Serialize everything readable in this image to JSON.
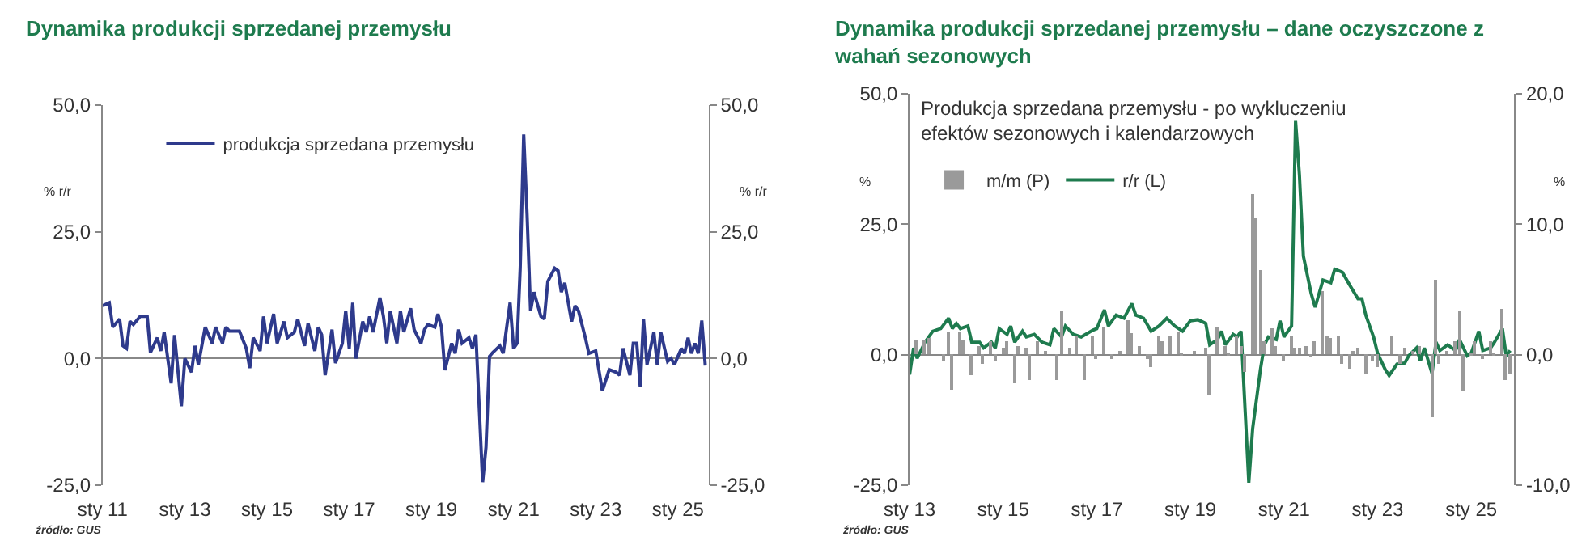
{
  "chart_data": [
    {
      "type": "line",
      "title": "Dynamika produkcji sprzedanej przemysłu",
      "ylabel": "% r/r",
      "y2label": "% r/r",
      "legend": "top",
      "annotations": [
        "źródło: GUS"
      ],
      "xlim": [
        "2011-01",
        "2025-10"
      ],
      "xticks": [
        {
          "value": "2011-01",
          "label": "sty 11"
        },
        {
          "value": "2013-01",
          "label": "sty 13"
        },
        {
          "value": "2015-01",
          "label": "sty 15"
        },
        {
          "value": "2017-01",
          "label": "sty 17"
        },
        {
          "value": "2019-01",
          "label": "sty 19"
        },
        {
          "value": "2021-01",
          "label": "sty 21"
        },
        {
          "value": "2023-01",
          "label": "sty 23"
        },
        {
          "value": "2025-01",
          "label": "sty 25"
        }
      ],
      "ylim": [
        -25,
        50
      ],
      "yticks": [
        {
          "value": -25,
          "label": "-25,0"
        },
        {
          "value": 0,
          "label": "0,0"
        },
        {
          "value": 25,
          "label": "25,0"
        },
        {
          "value": 50,
          "label": "50,0"
        }
      ],
      "y2lim": [
        -25,
        50
      ],
      "y2ticks": [
        {
          "value": -25,
          "label": "-25,0"
        },
        {
          "value": 0,
          "label": "0,0"
        },
        {
          "value": 25,
          "label": "25,0"
        },
        {
          "value": 50,
          "label": "50,0"
        }
      ],
      "series": [
        {
          "name": "produkcja sprzedana przemysłu",
          "color": "#2e3a8c",
          "type": "line",
          "x": [
            "2011-01",
            "2011-03",
            "2011-04",
            "2011-06",
            "2011-07",
            "2011-08",
            "2011-09",
            "2011-10",
            "2011-12",
            "2012-02",
            "2012-03",
            "2012-05",
            "2012-06",
            "2012-07",
            "2012-09",
            "2012-10",
            "2012-12",
            "2013-01",
            "2013-03",
            "2013-04",
            "2013-05",
            "2013-07",
            "2013-09",
            "2013-10",
            "2013-12",
            "2014-01",
            "2014-02",
            "2014-05",
            "2014-07",
            "2014-08",
            "2014-09",
            "2014-11",
            "2014-12",
            "2015-01",
            "2015-03",
            "2015-04",
            "2015-06",
            "2015-07",
            "2015-09",
            "2015-10",
            "2015-12",
            "2016-01",
            "2016-03",
            "2016-04",
            "2016-05",
            "2016-06",
            "2016-08",
            "2016-09",
            "2016-11",
            "2016-12",
            "2017-01",
            "2017-02",
            "2017-03",
            "2017-05",
            "2017-06",
            "2017-07",
            "2017-08",
            "2017-10",
            "2017-11",
            "2017-12",
            "2018-01",
            "2018-03",
            "2018-04",
            "2018-05",
            "2018-07",
            "2018-08",
            "2018-10",
            "2018-11",
            "2018-12",
            "2019-02",
            "2019-03",
            "2019-04",
            "2019-05",
            "2019-07",
            "2019-08",
            "2019-09",
            "2019-10",
            "2019-12",
            "2020-01",
            "2020-02",
            "2020-04",
            "2020-05",
            "2020-06",
            "2020-07",
            "2020-09",
            "2020-10",
            "2020-11",
            "2020-12",
            "2021-01",
            "2021-02",
            "2021-03",
            "2021-04",
            "2021-05",
            "2021-06",
            "2021-07",
            "2021-09",
            "2021-10",
            "2021-11",
            "2022-01",
            "2022-02",
            "2022-03",
            "2022-04",
            "2022-06",
            "2022-07",
            "2022-08",
            "2022-10",
            "2022-11",
            "2023-01",
            "2023-03",
            "2023-05",
            "2023-07",
            "2023-08",
            "2023-09",
            "2023-11",
            "2023-12",
            "2024-01",
            "2024-02",
            "2024-03",
            "2024-04",
            "2024-06",
            "2024-07",
            "2024-08",
            "2024-10",
            "2024-11",
            "2024-12",
            "2025-02",
            "2025-03",
            "2025-04",
            "2025-05",
            "2025-06",
            "2025-07",
            "2025-08",
            "2025-09"
          ],
          "values": [
            10.4,
            11,
            6.2,
            7.8,
            2.5,
            2,
            7.3,
            6.7,
            8.3,
            8.3,
            1.2,
            4.1,
            1.5,
            5.2,
            -4.9,
            4.6,
            -9.4,
            0,
            -2.7,
            2.5,
            -1.2,
            6.2,
            3,
            6.2,
            3,
            6.2,
            5.4,
            5.4,
            2,
            -1.9,
            4.1,
            1.5,
            8.3,
            3,
            8.8,
            3,
            7.3,
            4.1,
            5.2,
            7.8,
            2.5,
            6.9,
            1.5,
            6.2,
            4.7,
            -3.3,
            5.7,
            -0.9,
            3,
            9.4,
            2,
            11,
            0,
            7.3,
            5.2,
            8.3,
            5.2,
            12,
            8.3,
            3,
            9.4,
            3,
            9.4,
            5.2,
            9.9,
            5.7,
            3,
            5.7,
            6.7,
            6.2,
            8.8,
            6.2,
            -2.3,
            3,
            1,
            5.7,
            3,
            4.1,
            2,
            4.7,
            -24.4,
            -17.5,
            0.4,
            1.2,
            2.5,
            1,
            6.2,
            11,
            2,
            3,
            17.8,
            44.2,
            28.4,
            9.4,
            13.1,
            8.3,
            7.8,
            15.2,
            17.8,
            17.3,
            13.1,
            14.9,
            7.3,
            10.4,
            9.4,
            4.1,
            1,
            1.5,
            -6.4,
            -2.2,
            -2.7,
            -3.3,
            2,
            -3.3,
            3,
            3,
            -5.6,
            7.8,
            -1.2,
            5.2,
            -1.2,
            5.2,
            -0.6,
            0,
            -1.2,
            2,
            1,
            4.1,
            1,
            3,
            1,
            7.5,
            -1.4
          ]
        }
      ]
    },
    {
      "type": "line",
      "title": "Dynamika produkcji sprzedanej przemysłu – dane oczyszczone z wahań sezonowych",
      "subtitle": "Produkcja sprzedana przemysłu - po wykluczeniu efektów sezonowych i kalendarzowych",
      "ylabel": "%",
      "y2label": "%",
      "legend": "top left",
      "annotations": [
        "źródło: GUS"
      ],
      "xlim": [
        "2013-01",
        "2025-12"
      ],
      "xticks": [
        {
          "value": "2013-01",
          "label": "sty 13"
        },
        {
          "value": "2015-01",
          "label": "sty 15"
        },
        {
          "value": "2017-01",
          "label": "sty 17"
        },
        {
          "value": "2019-01",
          "label": "sty 19"
        },
        {
          "value": "2021-01",
          "label": "sty 21"
        },
        {
          "value": "2023-01",
          "label": "sty 23"
        },
        {
          "value": "2025-01",
          "label": "sty 25"
        }
      ],
      "ylim": [
        -25,
        50
      ],
      "yticks": [
        {
          "value": -25,
          "label": "-25,0"
        },
        {
          "value": 0,
          "label": "0,0"
        },
        {
          "value": 25,
          "label": "25,0"
        },
        {
          "value": 50,
          "label": "50,0"
        }
      ],
      "y2lim": [
        -10,
        20
      ],
      "y2ticks": [
        {
          "value": -10,
          "label": "-10,0"
        },
        {
          "value": 0,
          "label": "0,0"
        },
        {
          "value": 10,
          "label": "10,0"
        },
        {
          "value": 20,
          "label": "20,0"
        }
      ],
      "series": [
        {
          "name": "m/m (P)",
          "color": "#9a9a9a",
          "type": "bar",
          "axis": "y2",
          "x": [
            "2013-03",
            "2013-05",
            "2013-06",
            "2013-10",
            "2013-11",
            "2013-12",
            "2014-02",
            "2014-03",
            "2014-05",
            "2014-07",
            "2014-08",
            "2014-10",
            "2014-11",
            "2015-01",
            "2015-02",
            "2015-04",
            "2015-05",
            "2015-07",
            "2015-08",
            "2015-10",
            "2015-12",
            "2016-03",
            "2016-04",
            "2016-06",
            "2016-08",
            "2016-10",
            "2016-12",
            "2017-01",
            "2017-03",
            "2017-05",
            "2017-07",
            "2017-09",
            "2017-10",
            "2017-12",
            "2018-02",
            "2018-03",
            "2018-05",
            "2018-06",
            "2018-08",
            "2018-10",
            "2018-11",
            "2019-02",
            "2019-05",
            "2019-06",
            "2019-08",
            "2019-10",
            "2019-11",
            "2020-01",
            "2020-02",
            "2020-03",
            "2020-05",
            "2020-06",
            "2020-07",
            "2020-08",
            "2020-10",
            "2020-11",
            "2021-01",
            "2021-03",
            "2021-04",
            "2021-05",
            "2021-07",
            "2021-08",
            "2021-09",
            "2021-11",
            "2021-12",
            "2022-01",
            "2022-03",
            "2022-04",
            "2022-06",
            "2022-07",
            "2022-08",
            "2022-10",
            "2022-12",
            "2023-01",
            "2023-05",
            "2023-07",
            "2023-08",
            "2023-10",
            "2023-12",
            "2024-03",
            "2024-04",
            "2024-05",
            "2024-07",
            "2024-09",
            "2024-10",
            "2024-11",
            "2025-01",
            "2025-02",
            "2025-04",
            "2025-06",
            "2025-07",
            "2025-09",
            "2025-10",
            "2025-11"
          ],
          "values": [
            1.2,
            1.2,
            1.3,
            -0.4,
            1.8,
            -2.7,
            1.8,
            1.2,
            -1.6,
            0.7,
            -0.7,
            1,
            -0.5,
            0.5,
            1,
            -2.2,
            0.7,
            0.5,
            -1.9,
            1,
            0.3,
            -2,
            3.4,
            0.5,
            1.4,
            -1.9,
            1.4,
            -0.3,
            2.1,
            -0.3,
            0.3,
            2.6,
            1.6,
            0.7,
            -0.3,
            -0.9,
            1.4,
            1,
            1.4,
            1.8,
            0.1,
            0.3,
            0.5,
            -3,
            2.1,
            0.7,
            0.1,
            1.4,
            0.7,
            -1.3,
            12.3,
            10.4,
            6.5,
            1,
            2,
            0.7,
            -0.5,
            1.4,
            0.5,
            0.5,
            0.7,
            -0.1,
            1,
            4.9,
            1.4,
            1.3,
            1.4,
            -0.7,
            -1.1,
            0.3,
            0.5,
            -1.5,
            -0.5,
            -0.9,
            1.4,
            -0.7,
            0.5,
            0.3,
            0.7,
            -4.8,
            5.8,
            -0.7,
            0.3,
            1,
            3.4,
            -2.8,
            0.1,
            1,
            -0.3,
            1,
            0.1,
            3.5,
            -1.9,
            -1.5
          ]
        },
        {
          "name": "r/r (L)",
          "color": "#1e7b4e",
          "type": "line",
          "x": [
            "2013-01",
            "2013-02",
            "2013-03",
            "2013-05",
            "2013-07",
            "2013-09",
            "2013-11",
            "2013-12",
            "2014-01",
            "2014-02",
            "2014-04",
            "2014-05",
            "2014-07",
            "2014-08",
            "2014-10",
            "2014-11",
            "2014-12",
            "2015-02",
            "2015-03",
            "2015-04",
            "2015-06",
            "2015-07",
            "2015-09",
            "2015-11",
            "2016-01",
            "2016-02",
            "2016-04",
            "2016-05",
            "2016-07",
            "2016-09",
            "2016-12",
            "2017-01",
            "2017-03",
            "2017-04",
            "2017-06",
            "2017-08",
            "2017-10",
            "2017-11",
            "2018-01",
            "2018-03",
            "2018-05",
            "2018-07",
            "2018-09",
            "2018-11",
            "2019-01",
            "2019-03",
            "2019-05",
            "2019-06",
            "2019-08",
            "2019-09",
            "2019-10",
            "2019-12",
            "2020-01",
            "2020-02",
            "2020-04",
            "2020-05",
            "2020-07",
            "2020-08",
            "2020-09",
            "2020-11",
            "2020-12",
            "2021-01",
            "2021-03",
            "2021-04",
            "2021-05",
            "2021-06",
            "2021-08",
            "2021-09",
            "2021-11",
            "2022-01",
            "2022-02",
            "2022-04",
            "2022-06",
            "2022-08",
            "2022-09",
            "2022-10",
            "2022-12",
            "2023-01",
            "2023-03",
            "2023-04",
            "2023-06",
            "2023-08",
            "2023-09",
            "2023-11",
            "2023-12",
            "2024-01",
            "2024-03",
            "2024-04",
            "2024-05",
            "2024-07",
            "2024-09",
            "2024-10",
            "2024-12",
            "2025-01",
            "2025-03",
            "2025-04",
            "2025-06",
            "2025-07",
            "2025-09",
            "2025-10",
            "2025-11"
          ],
          "values": [
            -3.8,
            1.3,
            -0.7,
            2.4,
            4.5,
            5,
            7,
            5,
            6,
            5,
            5.5,
            2.4,
            2.4,
            1.3,
            2.4,
            1.3,
            5,
            3.9,
            5.5,
            2.4,
            4.5,
            3.4,
            3.9,
            2.4,
            1.9,
            5,
            3.4,
            5.5,
            3.9,
            3.4,
            4.7,
            5,
            8.6,
            5.5,
            7.6,
            7,
            9.8,
            7.6,
            7,
            4.5,
            5.5,
            7,
            5.5,
            4.5,
            6.5,
            6.7,
            6,
            1.9,
            2.9,
            4.5,
            1.9,
            3.9,
            3.4,
            4.5,
            -24.5,
            -14.2,
            -2.8,
            1.9,
            3.4,
            2.9,
            6.5,
            3.4,
            5.5,
            44.8,
            34.5,
            18.9,
            11.7,
            9.1,
            14.3,
            13.8,
            16.4,
            15.8,
            13.2,
            10.7,
            10.7,
            7.6,
            3.4,
            0.3,
            -2.8,
            -4,
            -1.8,
            -1.6,
            -0.2,
            1.3,
            -1.2,
            1.3,
            -3.6,
            2.4,
            0.8,
            1.9,
            0.8,
            2.9,
            -0.2,
            0.3,
            4.5,
            0.8,
            1.3,
            2.4,
            5,
            -0.2,
            0.8
          ]
        }
      ]
    }
  ]
}
